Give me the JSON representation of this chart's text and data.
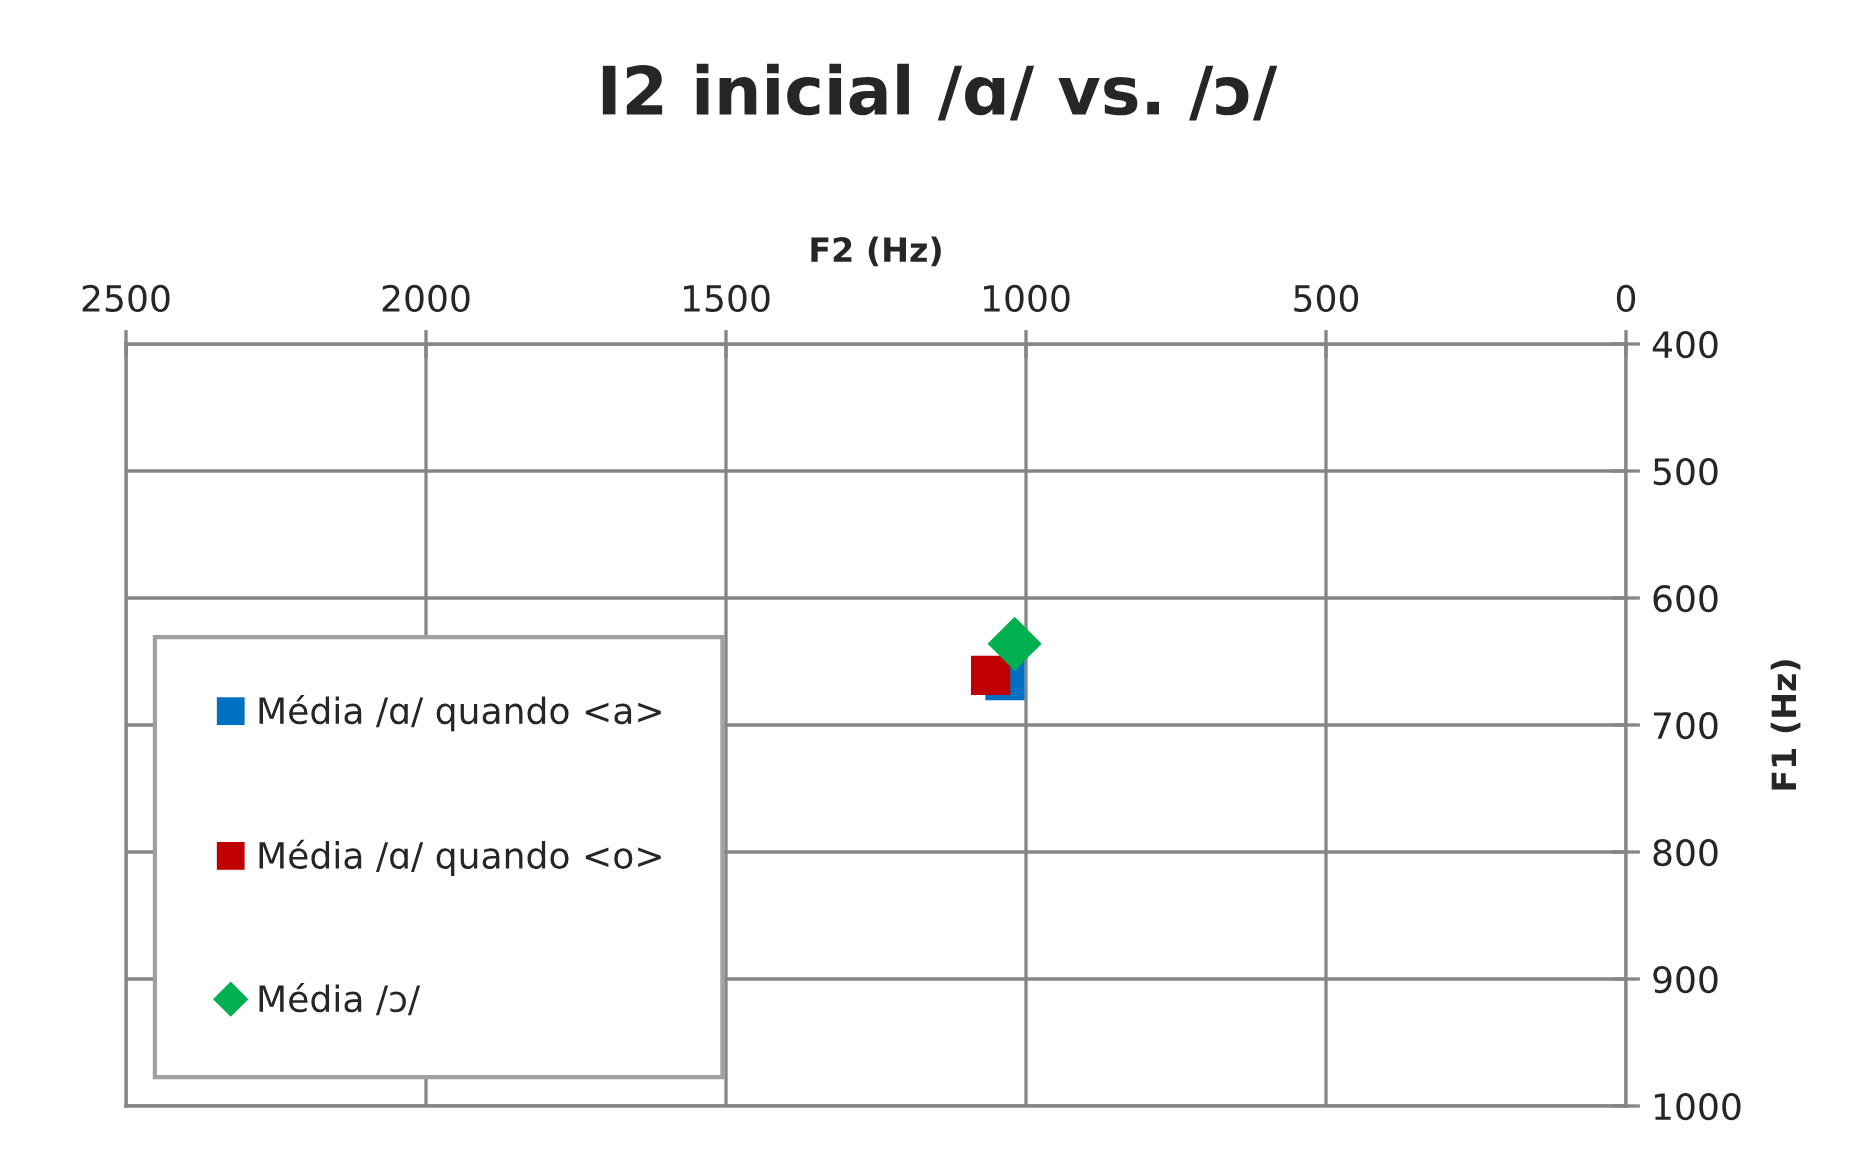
{
  "chart_data": {
    "type": "scatter",
    "title": "I2 inicial /ɑ/ vs. /ɔ/",
    "xlabel": "F2 (Hz)",
    "ylabel": "F1 (Hz)",
    "xlim": [
      2500,
      0
    ],
    "xticks": [
      2500,
      2000,
      1500,
      1000,
      500,
      0
    ],
    "ylim": [
      1000,
      400
    ],
    "yticks": [
      400,
      500,
      600,
      700,
      800,
      900,
      1000
    ],
    "grid": true,
    "legend": "bottom left",
    "series": [
      {
        "name": "Média /ɑ/ quando <a>",
        "color": "#0070c0",
        "marker": "square",
        "x": [
          1035
        ],
        "values": [
          665
        ]
      },
      {
        "name": "Média /ɑ/ quando <o>",
        "color": "#c00000",
        "marker": "square",
        "x": [
          1059
        ],
        "values": [
          661
        ]
      },
      {
        "name": "Média /ɔ/",
        "color": "#00b050",
        "marker": "diamond",
        "x": [
          1019
        ],
        "values": [
          636
        ]
      }
    ]
  }
}
